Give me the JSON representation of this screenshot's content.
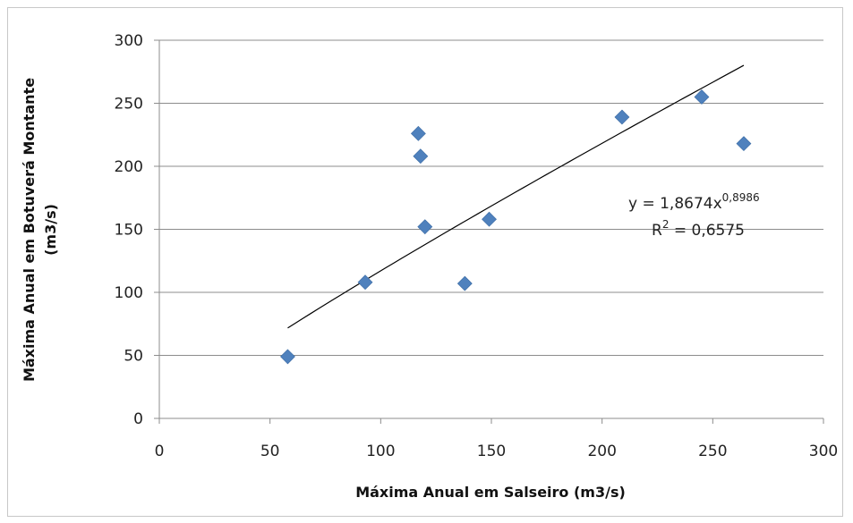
{
  "chart_data": {
    "type": "scatter",
    "title": "",
    "xlabel": "Máxima Anual em Salseiro  (m3/s)",
    "ylabel_line1": "Máxima Anual em Botuverá Montante",
    "ylabel_line2": "(m3/s)",
    "xlim": [
      0,
      300
    ],
    "ylim": [
      0,
      300
    ],
    "xticks": [
      "0",
      "50",
      "100",
      "150",
      "200",
      "250",
      "300"
    ],
    "yticks": [
      "0",
      "50",
      "100",
      "150",
      "200",
      "250",
      "300"
    ],
    "grid": "horizontal",
    "marker_color": "#4F81BD",
    "trendline_color": "#000000",
    "points": [
      {
        "x": 58,
        "y": 49
      },
      {
        "x": 93,
        "y": 108
      },
      {
        "x": 117,
        "y": 226
      },
      {
        "x": 118,
        "y": 208
      },
      {
        "x": 120,
        "y": 152
      },
      {
        "x": 138,
        "y": 107
      },
      {
        "x": 149,
        "y": 158
      },
      {
        "x": 209,
        "y": 239
      },
      {
        "x": 245,
        "y": 255
      },
      {
        "x": 264,
        "y": 218
      }
    ],
    "trendline": {
      "type": "power",
      "coefficient": 1.8674,
      "exponent": 0.8986,
      "x_range": [
        58,
        264
      ],
      "equation_prefix": "y = 1,8674x",
      "equation_exponent": "0,8986",
      "r2_prefix": "R",
      "r2_sup": "2",
      "r2_value": " = 0,6575"
    }
  }
}
